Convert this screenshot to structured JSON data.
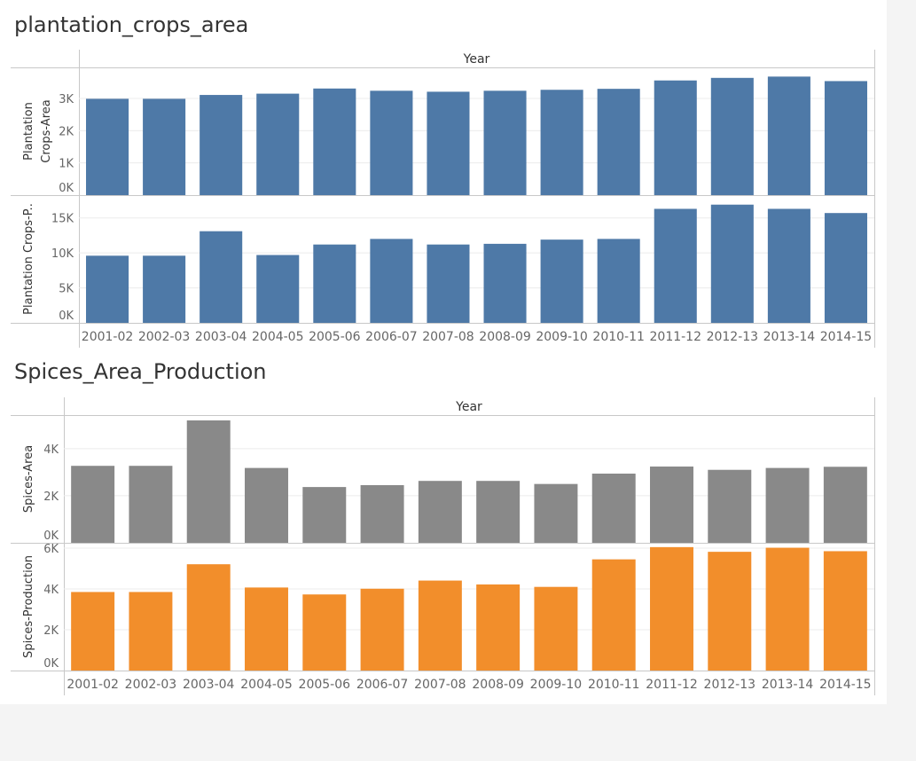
{
  "dashboard": {
    "title_plantation": "plantation_crops_area",
    "title_spices": "Spices_Area_Production"
  },
  "chart_data": [
    {
      "type": "bar",
      "name": "plantation_crops_area",
      "column_header": "Year",
      "categories": [
        "2001-02",
        "2002-03",
        "2003-04",
        "2004-05",
        "2005-06",
        "2006-07",
        "2007-08",
        "2008-09",
        "2009-10",
        "2010-11",
        "2011-12",
        "2012-13",
        "2013-14",
        "2014-15"
      ],
      "panes": [
        {
          "ylabel": [
            "Plantation",
            "Crops-Area"
          ],
          "color": "#4e79a7",
          "ylim": [
            0,
            3800
          ],
          "ticks": [
            0,
            1000,
            2000,
            3000
          ],
          "tick_labels": [
            "0K",
            "1K",
            "2K",
            "3K"
          ],
          "values": [
            2990,
            2990,
            3110,
            3150,
            3310,
            3240,
            3210,
            3240,
            3270,
            3300,
            3560,
            3640,
            3680,
            3540
          ]
        },
        {
          "ylabel": [
            "Plantation Crops-P.."
          ],
          "color": "#4e79a7",
          "ylim": [
            0,
            17500
          ],
          "ticks": [
            0,
            5000,
            10000,
            15000
          ],
          "tick_labels": [
            "0K",
            "5K",
            "10K",
            "15K"
          ],
          "values": [
            9600,
            9600,
            13100,
            9700,
            11200,
            12000,
            11200,
            11300,
            11900,
            12000,
            16300,
            16900,
            16300,
            15700
          ]
        }
      ]
    },
    {
      "type": "bar",
      "name": "Spices_Area_Production",
      "column_header": "Year",
      "categories": [
        "2001-02",
        "2002-03",
        "2003-04",
        "2004-05",
        "2005-06",
        "2006-07",
        "2007-08",
        "2008-09",
        "2009-10",
        "2010-11",
        "2011-12",
        "2012-13",
        "2013-14",
        "2014-15"
      ],
      "panes": [
        {
          "ylabel": [
            "Spices-Area"
          ],
          "color": "#898989",
          "ylim": [
            0,
            5200
          ],
          "ticks": [
            0,
            2000,
            4000
          ],
          "tick_labels": [
            "0K",
            "2K",
            "4K"
          ],
          "values": [
            3270,
            3270,
            5200,
            3180,
            2370,
            2450,
            2630,
            2630,
            2500,
            2940,
            3240,
            3100,
            3180,
            3230
          ]
        },
        {
          "ylabel": [
            "Spices-Production"
          ],
          "color": "#f28e2b",
          "ylim": [
            0,
            6000
          ],
          "ticks": [
            0,
            2000,
            4000,
            6000
          ],
          "tick_labels": [
            "0K",
            "2K",
            "4K",
            "6K"
          ],
          "values": [
            3850,
            3850,
            5210,
            4070,
            3730,
            4010,
            4410,
            4220,
            4100,
            5450,
            6050,
            5820,
            6020,
            5850
          ]
        }
      ]
    }
  ]
}
